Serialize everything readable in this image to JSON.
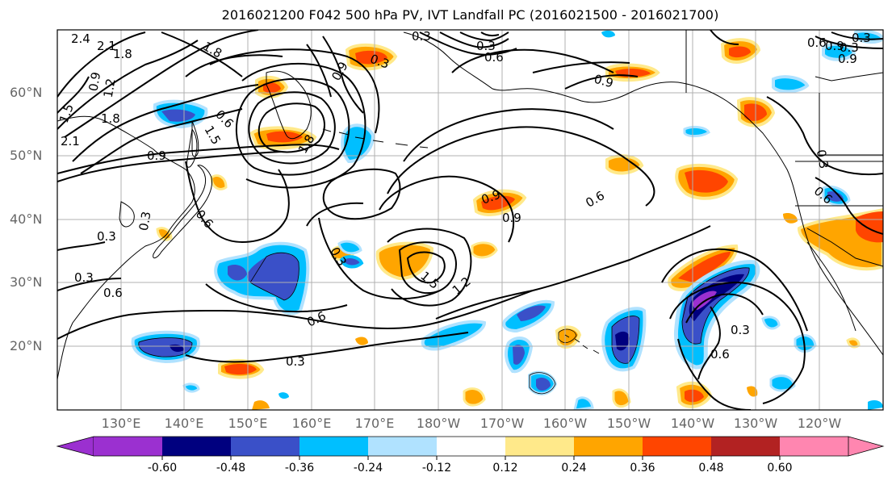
{
  "title": "2016021200 F042 500 hPa PV, IVT Landfall PC (2016021500 - 2016021700)",
  "lat_labels": [
    "60°N",
    "50°N",
    "40°N",
    "30°N",
    "20°N"
  ],
  "lon_labels": [
    "130°E",
    "140°E",
    "150°E",
    "160°E",
    "170°E",
    "180°W",
    "170°W",
    "160°W",
    "150°W",
    "140°W",
    "130°W",
    "120°W"
  ],
  "colorbar": {
    "ticks": [
      "-0.60",
      "-0.48",
      "-0.36",
      "-0.24",
      "-0.12",
      "0.12",
      "0.24",
      "0.36",
      "0.48",
      "0.60"
    ],
    "colors": [
      "#9b30d0",
      "#00007f",
      "#3a50c8",
      "#00bfff",
      "#b0e2ff",
      "#ffffff",
      "#ffe98a",
      "#ffa500",
      "#ff4500",
      "#b22222",
      "#ff86b0"
    ]
  },
  "contour_labels": [
    "2.4",
    "2.1",
    "1.8",
    "1.8",
    "0.9",
    "1.2",
    "1.5",
    "1.8",
    "2.1",
    "0.9",
    "1.5",
    "1.8",
    "0.3",
    "0.9",
    "0.6",
    "0.3",
    "0.3",
    "0.6",
    "0.3",
    "1.5",
    "1.2",
    "0.6",
    "0.3",
    "0.9",
    "0.6",
    "0.6",
    "0.3",
    "0.6",
    "0.3",
    "0.9",
    "0.6",
    "0.9",
    "0.3",
    "0.6",
    "0.3",
    "0.3",
    "0.9",
    "0.3",
    "0.9",
    "0.6",
    "0.3"
  ]
}
